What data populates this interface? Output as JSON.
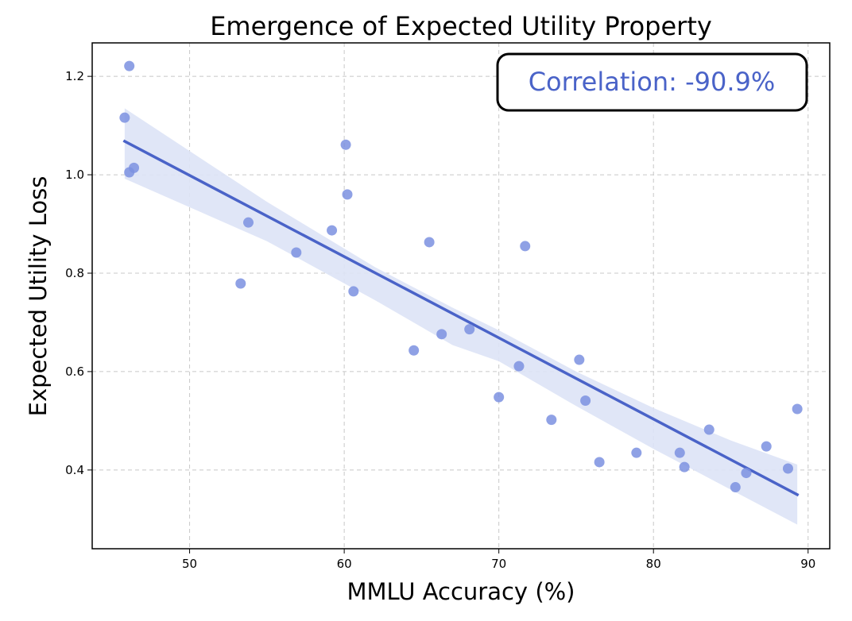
{
  "chart_data": {
    "type": "scatter",
    "title": "Emergence of Expected Utility Property",
    "xlabel": "MMLU Accuracy (%)",
    "ylabel": "Expected Utility Loss",
    "xlim": [
      43.7,
      91.4
    ],
    "ylim": [
      0.24,
      1.268
    ],
    "xticks": [
      50,
      60,
      70,
      80,
      90
    ],
    "xtick_labels": [
      "50",
      "60",
      "70",
      "80",
      "90"
    ],
    "yticks": [
      0.4,
      0.6,
      0.8,
      1.0,
      1.2
    ],
    "ytick_labels": [
      "0.4",
      "0.6",
      "0.8",
      "1.0",
      "1.2"
    ],
    "grid": true,
    "colors": {
      "points": "#7b90e0",
      "line": "#4a63c8",
      "band": "#dde3f6",
      "annotation": "#4a63c8"
    },
    "annotation": {
      "text": "Correlation: -90.9%",
      "placement": "top-right"
    },
    "points": [
      {
        "x": 46.1,
        "y": 1.221
      },
      {
        "x": 45.8,
        "y": 1.116
      },
      {
        "x": 46.1,
        "y": 1.005
      },
      {
        "x": 46.4,
        "y": 1.014
      },
      {
        "x": 53.3,
        "y": 0.779
      },
      {
        "x": 53.8,
        "y": 0.903
      },
      {
        "x": 56.9,
        "y": 0.842
      },
      {
        "x": 59.2,
        "y": 0.887
      },
      {
        "x": 60.1,
        "y": 1.061
      },
      {
        "x": 60.2,
        "y": 0.96
      },
      {
        "x": 60.6,
        "y": 0.763
      },
      {
        "x": 64.5,
        "y": 0.643
      },
      {
        "x": 65.5,
        "y": 0.863
      },
      {
        "x": 66.3,
        "y": 0.676
      },
      {
        "x": 68.1,
        "y": 0.686
      },
      {
        "x": 70.0,
        "y": 0.548
      },
      {
        "x": 71.3,
        "y": 0.611
      },
      {
        "x": 71.7,
        "y": 0.855
      },
      {
        "x": 73.4,
        "y": 0.502
      },
      {
        "x": 75.2,
        "y": 0.624
      },
      {
        "x": 75.6,
        "y": 0.541
      },
      {
        "x": 76.5,
        "y": 0.416
      },
      {
        "x": 78.9,
        "y": 0.435
      },
      {
        "x": 81.7,
        "y": 0.435
      },
      {
        "x": 82.0,
        "y": 0.406
      },
      {
        "x": 83.6,
        "y": 0.482
      },
      {
        "x": 85.3,
        "y": 0.365
      },
      {
        "x": 86.0,
        "y": 0.394
      },
      {
        "x": 87.3,
        "y": 0.448
      },
      {
        "x": 88.7,
        "y": 0.403
      },
      {
        "x": 89.3,
        "y": 0.524
      }
    ],
    "regression": {
      "x": [
        45.8,
        89.3
      ],
      "y": [
        1.068,
        0.35
      ]
    },
    "confidence_band": {
      "x": [
        45.8,
        55.0,
        62.0,
        67.0,
        70.0,
        75.0,
        80.0,
        85.0,
        89.3
      ],
      "upper": [
        1.135,
        0.945,
        0.812,
        0.73,
        0.684,
        0.6,
        0.526,
        0.46,
        0.411
      ],
      "lower": [
        0.992,
        0.865,
        0.745,
        0.654,
        0.621,
        0.53,
        0.443,
        0.36,
        0.289
      ]
    }
  }
}
